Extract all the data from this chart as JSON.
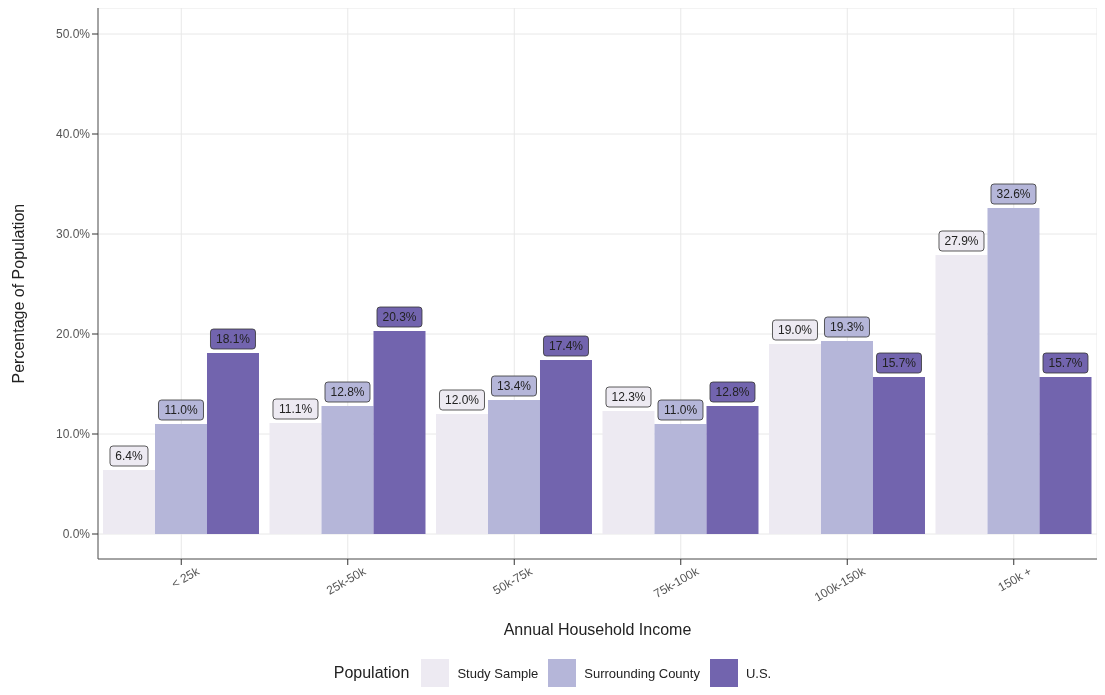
{
  "chart_data": {
    "type": "bar",
    "xlabel": "Annual Household Income",
    "ylabel": "Percentage of Population",
    "legend_title": "Population",
    "categories": [
      "< 25k",
      "25k-50k",
      "50k-75k",
      "75k-100k",
      "100k-150k",
      "150k +"
    ],
    "series": [
      {
        "name": "Study Sample",
        "color": "#edeaf2",
        "values": [
          6.4,
          11.1,
          12.0,
          12.3,
          19.0,
          27.9
        ],
        "value_labels": [
          "6.4%",
          "11.1%",
          "12.0%",
          "12.3%",
          "19.0%",
          "27.9%"
        ]
      },
      {
        "name": "Surrounding County",
        "color": "#b5b6d9",
        "values": [
          11.0,
          12.8,
          13.4,
          11.0,
          19.3,
          32.6
        ],
        "value_labels": [
          "11.0%",
          "12.8%",
          "13.4%",
          "11.0%",
          "19.3%",
          "32.6%"
        ]
      },
      {
        "name": "U.S.",
        "color": "#7264ae",
        "values": [
          18.1,
          20.3,
          17.4,
          12.8,
          15.7,
          15.7
        ],
        "value_labels": [
          "18.1%",
          "20.3%",
          "17.4%",
          "12.8%",
          "15.7%",
          "15.7%"
        ]
      }
    ],
    "ylim": [
      -2.5,
      52.6
    ],
    "yticks": [
      {
        "value": 0,
        "label": "0.0%"
      },
      {
        "value": 10,
        "label": "10.0%"
      },
      {
        "value": 20,
        "label": "20.0%"
      },
      {
        "value": 30,
        "label": "30.0%"
      },
      {
        "value": 40,
        "label": "40.0%"
      },
      {
        "value": 50,
        "label": "50.0%"
      }
    ],
    "grid": true,
    "legend": "bottom"
  }
}
